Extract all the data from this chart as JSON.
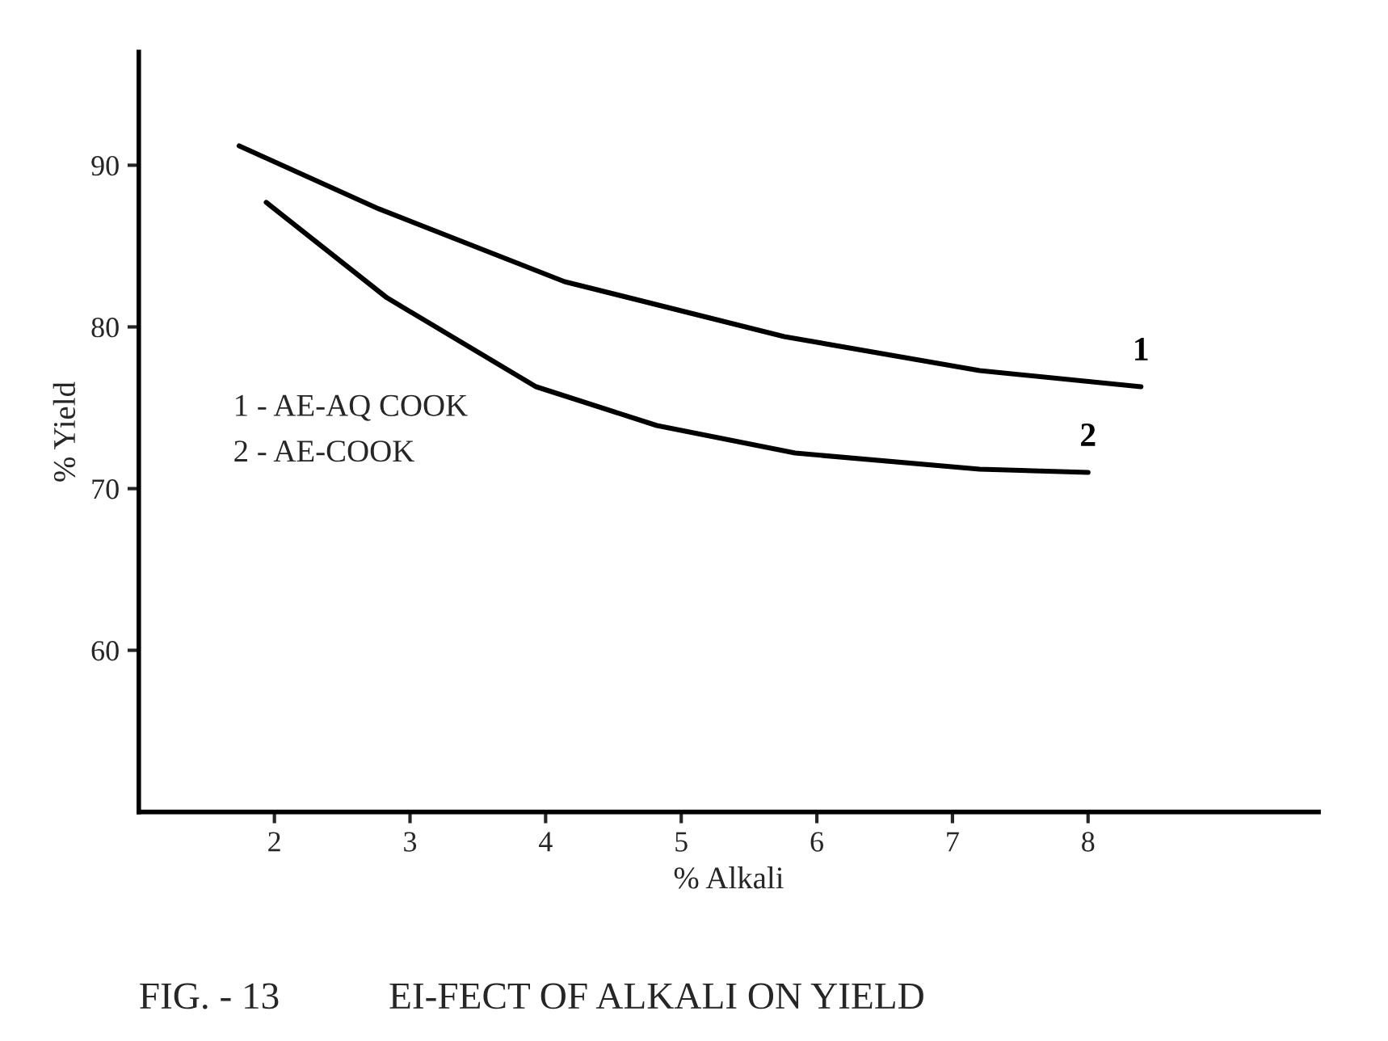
{
  "chart_data": {
    "type": "line",
    "title": "EI-FECT OF ALKALI ON YIELD",
    "xlabel": "% Alkali",
    "ylabel": "% Yield",
    "xlim": [
      1,
      9.7
    ],
    "ylim": [
      50,
      97
    ],
    "xticks": [
      2,
      3,
      4,
      5,
      6,
      7,
      8
    ],
    "yticks": [
      60,
      70,
      80,
      90
    ],
    "grid": false,
    "legend": false,
    "marker": "none",
    "line_style": "solid",
    "annotations": [
      "FIG. - 13",
      "1 - AE-AQ COOK",
      "2 - AE-COOK"
    ],
    "series": [
      {
        "name": "1",
        "color": "#000000",
        "x": [
          1.74,
          2.77,
          4.14,
          5.76,
          7.2,
          8.39
        ],
        "values": [
          91.2,
          87.3,
          82.8,
          79.4,
          77.3,
          76.3
        ]
      },
      {
        "name": "2",
        "color": "#000000",
        "x": [
          1.94,
          2.83,
          3.93,
          4.82,
          5.84,
          7.2,
          8.0
        ],
        "values": [
          87.7,
          81.8,
          76.3,
          73.9,
          72.2,
          71.2,
          71.0
        ]
      }
    ]
  }
}
